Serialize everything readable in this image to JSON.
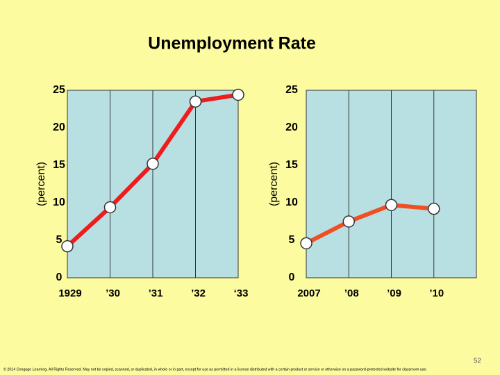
{
  "title": "Unemployment Rate",
  "chart_data": [
    {
      "type": "line",
      "ylabel": "(percent)",
      "categories": [
        "1929",
        "’30",
        "’31",
        "’32",
        "‘33"
      ],
      "values": [
        4.2,
        9.4,
        15.2,
        23.5,
        24.4
      ],
      "color": "#ee1c1c",
      "ylim": [
        0,
        25
      ],
      "yticks": [
        0,
        5,
        10,
        15,
        20,
        25
      ],
      "grid": true
    },
    {
      "type": "line",
      "ylabel": "(percent)",
      "categories": [
        "2007",
        "’08",
        "’09",
        "’10"
      ],
      "values": [
        4.6,
        7.5,
        9.7,
        9.2
      ],
      "color": "#f04e23",
      "ylim": [
        0,
        25
      ],
      "yticks": [
        0,
        5,
        10,
        15,
        20,
        25
      ],
      "grid": true
    }
  ],
  "footer": {
    "copyright": "© 2014 Cengage Learning. All Rights Reserved. May not be copied, scanned, or duplicated, in whole or in part, except for use as permitted in a license distributed with a certain product or service or otherwise on a password-protected website for classroom use.",
    "page_number": "52"
  }
}
